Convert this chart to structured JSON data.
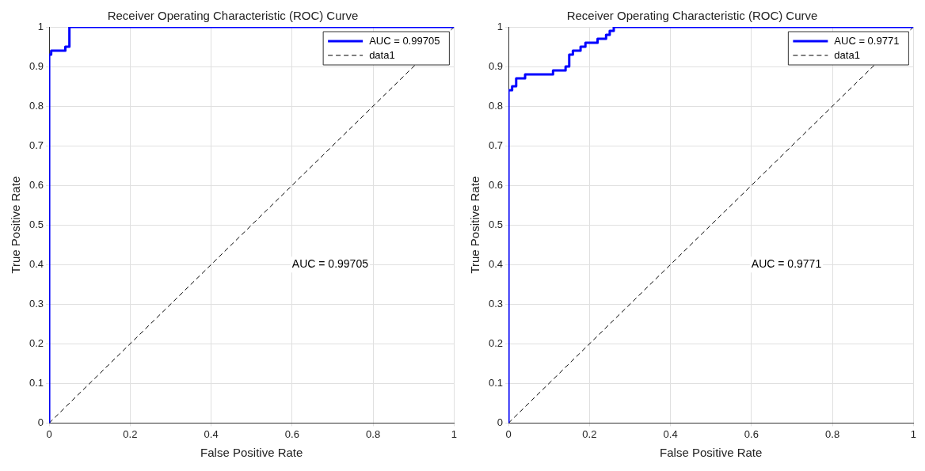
{
  "chart_data": [
    {
      "type": "step",
      "title": "Receiver Operating Characteristic (ROC) Curve",
      "xlabel": "False Positive Rate",
      "ylabel": "True Positive Rate",
      "xlim": [
        0,
        1
      ],
      "ylim": [
        0,
        1
      ],
      "xticks": [
        0,
        0.2,
        0.4,
        0.6,
        0.8,
        1
      ],
      "yticks": [
        0,
        0.1,
        0.2,
        0.3,
        0.4,
        0.5,
        0.6,
        0.7,
        0.8,
        0.9,
        1
      ],
      "grid": true,
      "legend": "top right",
      "annotations": [
        "AUC = 0.99705"
      ],
      "series": [
        {
          "name": "AUC = 0.99705",
          "color": "#0000ff",
          "x": [
            0,
            0,
            0.005,
            0.04,
            0.05,
            1
          ],
          "values": [
            0,
            0.93,
            0.94,
            0.95,
            1,
            1
          ]
        },
        {
          "name": "data1",
          "type": "line",
          "color": "#000000",
          "line_style": "dashed",
          "x": [
            0,
            1
          ],
          "values": [
            0,
            1
          ]
        }
      ]
    },
    {
      "type": "step",
      "title": "Receiver Operating Characteristic (ROC) Curve",
      "xlabel": "False Positive Rate",
      "ylabel": "True Positive Rate",
      "xlim": [
        0,
        1
      ],
      "ylim": [
        0,
        1
      ],
      "xticks": [
        0,
        0.2,
        0.4,
        0.6,
        0.8,
        1
      ],
      "yticks": [
        0,
        0.1,
        0.2,
        0.3,
        0.4,
        0.5,
        0.6,
        0.7,
        0.8,
        0.9,
        1
      ],
      "grid": true,
      "legend": "top right",
      "annotations": [
        "AUC = 0.9771"
      ],
      "series": [
        {
          "name": "AUC = 0.9771",
          "color": "#0000ff",
          "x": [
            0,
            0,
            0.009,
            0.019,
            0.041,
            0.11,
            0.141,
            0.15,
            0.159,
            0.178,
            0.19,
            0.22,
            0.241,
            0.25,
            0.26,
            1
          ],
          "values": [
            0,
            0.84,
            0.85,
            0.87,
            0.88,
            0.89,
            0.9,
            0.93,
            0.94,
            0.95,
            0.96,
            0.97,
            0.98,
            0.99,
            1,
            1
          ]
        },
        {
          "name": "data1",
          "type": "line",
          "color": "#000000",
          "line_style": "dashed",
          "x": [
            0,
            1
          ],
          "values": [
            0,
            1
          ]
        }
      ]
    }
  ]
}
